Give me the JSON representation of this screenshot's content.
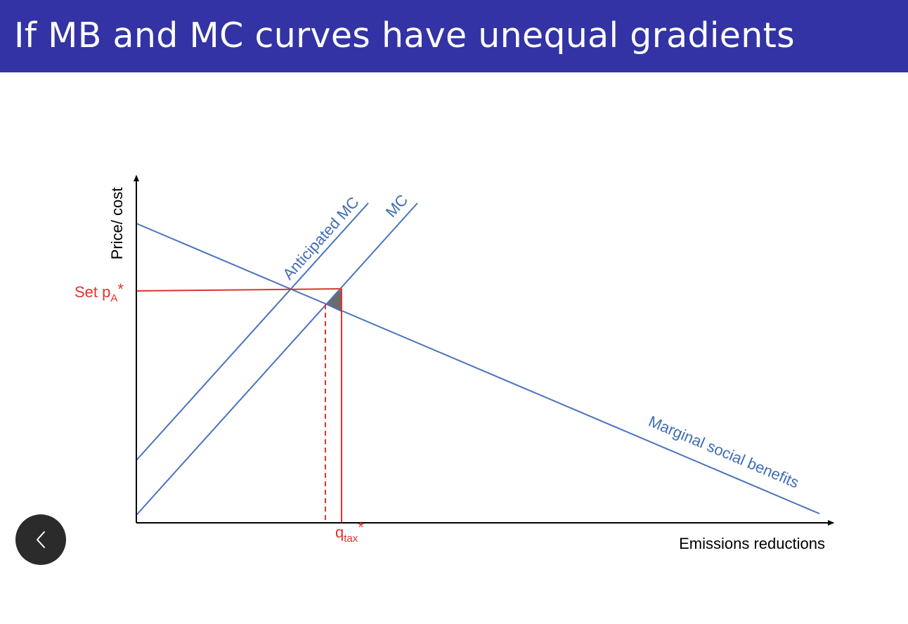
{
  "slide": {
    "title": "If MB and MC curves have unequal gradients"
  },
  "diagram": {
    "y_axis_label": "Price/ cost",
    "x_axis_label": "Emissions reductions",
    "curves": {
      "anticipated_mc": "Anticipated MC",
      "mc": "MC",
      "msb": "Marginal social benefits"
    },
    "price_label": {
      "text": "Set p",
      "subscript": "A",
      "suffix": "*"
    },
    "quantity_label": {
      "text": "q",
      "subscript": "tax",
      "suffix": "*"
    },
    "colors": {
      "curve": "#4a72c0",
      "policy": "#e0332c",
      "deadweight": "#6b6b6b",
      "axis": "#000000",
      "title_bar": "#3333a6"
    }
  },
  "nav": {
    "back_icon": "chevron-left-icon"
  }
}
